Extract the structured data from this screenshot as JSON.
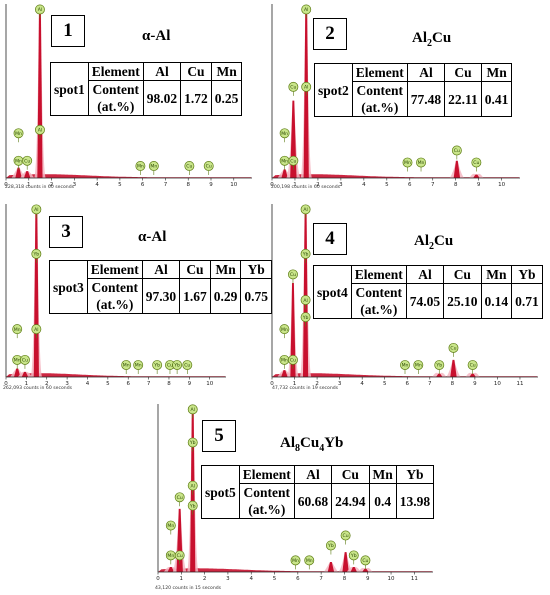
{
  "chart_data": [
    {
      "type": "eds-spectrum",
      "panel_number": "1",
      "title": "α-Al",
      "title_sub": "",
      "caption": "228,318 counts in 60 seconds",
      "x_ticks": [
        "0",
        "1",
        "2",
        "3",
        "4",
        "5",
        "6",
        "7",
        "8",
        "9",
        "10"
      ],
      "xlim": [
        0,
        10.8
      ],
      "ylim": [
        0,
        1
      ],
      "peaks": [
        {
          "element": "Mn",
          "energy": 0.55,
          "height": 0.06
        },
        {
          "element": "Cu",
          "energy": 0.93,
          "height": 0.04
        },
        {
          "element": "Al",
          "energy": 1.49,
          "height": 1.0
        },
        {
          "element": "Mn",
          "energy": 5.9,
          "height": 0.0
        },
        {
          "element": "Mn",
          "energy": 6.49,
          "height": 0.0
        },
        {
          "element": "Cu",
          "energy": 8.05,
          "height": 0.0
        },
        {
          "element": "Cu",
          "energy": 8.9,
          "height": 0.0
        }
      ],
      "marker_labels": [
        {
          "element": "Al",
          "energy": 1.49,
          "level": 0.98
        },
        {
          "element": "Al",
          "energy": 1.49,
          "level": 0.28
        },
        {
          "element": "Mn",
          "energy": 0.55,
          "level": 0.1
        },
        {
          "element": "Mn",
          "energy": 0.55,
          "level": 0.26
        },
        {
          "element": "Cu",
          "energy": 0.93,
          "level": 0.1
        },
        {
          "element": "Mn",
          "energy": 5.9,
          "level": 0.07
        },
        {
          "element": "Mn",
          "energy": 6.49,
          "level": 0.07
        },
        {
          "element": "Cu",
          "energy": 8.05,
          "level": 0.07
        },
        {
          "element": "Cu",
          "energy": 8.9,
          "level": 0.07
        }
      ],
      "table": {
        "headers": [
          "Element",
          "Al",
          "Cu",
          "Mn"
        ],
        "spot": "spot1",
        "row_label": [
          "Content",
          "(at.%)"
        ],
        "values": [
          "98.02",
          "1.72",
          "0.25"
        ]
      }
    },
    {
      "type": "eds-spectrum",
      "panel_number": "2",
      "title": "Al",
      "title_sub": "2",
      "title_tail": "Cu",
      "caption": "200,198 counts in 60 seconds",
      "x_ticks": [
        "0",
        "1",
        "2",
        "3",
        "4",
        "5",
        "6",
        "7",
        "8",
        "9",
        "10"
      ],
      "xlim": [
        0,
        10.8
      ],
      "ylim": [
        0,
        1
      ],
      "peaks": [
        {
          "element": "Mn",
          "energy": 0.55,
          "height": 0.05
        },
        {
          "element": "Cu",
          "energy": 0.93,
          "height": 0.45
        },
        {
          "element": "Al",
          "energy": 1.49,
          "height": 1.0
        },
        {
          "element": "Mn",
          "energy": 5.9,
          "height": 0.0
        },
        {
          "element": "Mn",
          "energy": 6.49,
          "height": 0.0
        },
        {
          "element": "Cu",
          "energy": 8.05,
          "height": 0.1
        },
        {
          "element": "Cu",
          "energy": 8.9,
          "height": 0.02
        }
      ],
      "marker_labels": [
        {
          "element": "Al",
          "energy": 1.49,
          "level": 0.98
        },
        {
          "element": "Al",
          "energy": 1.49,
          "level": 0.53
        },
        {
          "element": "Cu",
          "energy": 0.93,
          "level": 0.53
        },
        {
          "element": "Mn",
          "energy": 0.55,
          "level": 0.1
        },
        {
          "element": "Mn",
          "energy": 0.55,
          "level": 0.26
        },
        {
          "element": "Cu",
          "energy": 0.93,
          "level": 0.1
        },
        {
          "element": "Mn",
          "energy": 5.9,
          "level": 0.09
        },
        {
          "element": "Mn",
          "energy": 6.49,
          "level": 0.09
        },
        {
          "element": "Cu",
          "energy": 8.05,
          "level": 0.16
        },
        {
          "element": "Cu",
          "energy": 8.9,
          "level": 0.09
        }
      ],
      "table": {
        "headers": [
          "Element",
          "Al",
          "Cu",
          "Mn"
        ],
        "spot": "spot2",
        "row_label": [
          "Content",
          "(at.%)"
        ],
        "values": [
          "77.48",
          "22.11",
          "0.41"
        ]
      }
    },
    {
      "type": "eds-spectrum",
      "panel_number": "3",
      "title": "α-Al",
      "title_sub": "",
      "caption": "262,093 counts in 60 seconds",
      "x_ticks": [
        "0",
        "1",
        "2",
        "3",
        "4",
        "5",
        "6",
        "7",
        "8",
        "9",
        "10"
      ],
      "xlim": [
        0,
        10.8
      ],
      "ylim": [
        0,
        1
      ],
      "peaks": [
        {
          "element": "Mn",
          "energy": 0.55,
          "height": 0.05
        },
        {
          "element": "Cu",
          "energy": 0.93,
          "height": 0.03
        },
        {
          "element": "Al",
          "energy": 1.49,
          "height": 1.0
        },
        {
          "element": "Mn",
          "energy": 5.9,
          "height": 0.0
        },
        {
          "element": "Mn",
          "energy": 6.49,
          "height": 0.0
        },
        {
          "element": "Yb",
          "energy": 7.42,
          "height": 0.0
        },
        {
          "element": "Cu",
          "energy": 8.05,
          "height": 0.0
        },
        {
          "element": "Yb",
          "energy": 8.4,
          "height": 0.0
        },
        {
          "element": "Cu",
          "energy": 8.9,
          "height": 0.0
        }
      ],
      "marker_labels": [
        {
          "element": "Al",
          "energy": 1.49,
          "level": 0.98
        },
        {
          "element": "Yb",
          "energy": 1.49,
          "level": 0.72
        },
        {
          "element": "Al",
          "energy": 1.49,
          "level": 0.28
        },
        {
          "element": "Mn",
          "energy": 0.55,
          "level": 0.1
        },
        {
          "element": "Mn",
          "energy": 0.55,
          "level": 0.28
        },
        {
          "element": "Cu",
          "energy": 0.93,
          "level": 0.1
        },
        {
          "element": "Mn",
          "energy": 5.9,
          "level": 0.07
        },
        {
          "element": "Mn",
          "energy": 6.49,
          "level": 0.07
        },
        {
          "element": "Yb",
          "energy": 7.42,
          "level": 0.07
        },
        {
          "element": "Cu",
          "energy": 8.05,
          "level": 0.07
        },
        {
          "element": "Yb",
          "energy": 8.4,
          "level": 0.07
        },
        {
          "element": "Cu",
          "energy": 8.9,
          "level": 0.07
        }
      ],
      "table": {
        "headers": [
          "Element",
          "Al",
          "Cu",
          "Mn",
          "Yb"
        ],
        "spot": "spot3",
        "row_label": [
          "Content",
          "(at.%)"
        ],
        "values": [
          "97.30",
          "1.67",
          "0.29",
          "0.75"
        ]
      }
    },
    {
      "type": "eds-spectrum",
      "panel_number": "4",
      "title": "Al",
      "title_sub": "2",
      "title_tail": "Cu",
      "caption": "47,732 counts in 19 seconds",
      "x_ticks": [
        "0",
        "1",
        "2",
        "3",
        "4",
        "5",
        "6",
        "7",
        "8",
        "9",
        "10",
        "11"
      ],
      "xlim": [
        0,
        11.8
      ],
      "ylim": [
        0,
        1
      ],
      "peaks": [
        {
          "element": "Mn",
          "energy": 0.55,
          "height": 0.04
        },
        {
          "element": "Cu",
          "energy": 0.93,
          "height": 0.55
        },
        {
          "element": "Al",
          "energy": 1.49,
          "height": 1.0
        },
        {
          "element": "Mn",
          "energy": 5.9,
          "height": 0.0
        },
        {
          "element": "Mn",
          "energy": 6.49,
          "height": 0.0
        },
        {
          "element": "Yb",
          "energy": 7.42,
          "height": 0.02
        },
        {
          "element": "Cu",
          "energy": 8.05,
          "height": 0.1
        },
        {
          "element": "Cu",
          "energy": 8.9,
          "height": 0.02
        }
      ],
      "marker_labels": [
        {
          "element": "Al",
          "energy": 1.49,
          "level": 0.98
        },
        {
          "element": "Yb",
          "energy": 1.49,
          "level": 0.72
        },
        {
          "element": "Cu",
          "energy": 0.93,
          "level": 0.6
        },
        {
          "element": "Yb",
          "energy": 1.49,
          "level": 0.35
        },
        {
          "element": "Al",
          "energy": 1.49,
          "level": 0.45
        },
        {
          "element": "Mn",
          "energy": 0.55,
          "level": 0.1
        },
        {
          "element": "Mn",
          "energy": 0.55,
          "level": 0.28
        },
        {
          "element": "Cu",
          "energy": 0.93,
          "level": 0.1
        },
        {
          "element": "Mn",
          "energy": 5.9,
          "level": 0.07
        },
        {
          "element": "Mn",
          "energy": 6.49,
          "level": 0.07
        },
        {
          "element": "Yb",
          "energy": 7.42,
          "level": 0.07
        },
        {
          "element": "Cu",
          "energy": 8.05,
          "level": 0.17
        },
        {
          "element": "Cu",
          "energy": 8.9,
          "level": 0.07
        }
      ],
      "table": {
        "headers": [
          "Element",
          "Al",
          "Cu",
          "Mn",
          "Yb"
        ],
        "spot": "spot4",
        "row_label": [
          "Content",
          "(at.%)"
        ],
        "values": [
          "74.05",
          "25.10",
          "0.14",
          "0.71"
        ]
      }
    },
    {
      "type": "eds-spectrum",
      "panel_number": "5",
      "title": "Al",
      "title_sub": "8",
      "title_mid": "Cu",
      "title_sub2": "4",
      "title_tail": "Yb",
      "caption": "43,120 counts in 15 seconds",
      "x_ticks": [
        "0",
        "1",
        "2",
        "3",
        "4",
        "5",
        "6",
        "7",
        "8",
        "9",
        "10",
        "11"
      ],
      "xlim": [
        0,
        11.8
      ],
      "ylim": [
        0,
        1
      ],
      "peaks": [
        {
          "element": "Mn",
          "energy": 0.55,
          "height": 0.03
        },
        {
          "element": "Cu",
          "energy": 0.93,
          "height": 0.38
        },
        {
          "element": "Al",
          "energy": 1.49,
          "height": 1.0
        },
        {
          "element": "Mn",
          "energy": 5.9,
          "height": 0.0
        },
        {
          "element": "Mn",
          "energy": 6.49,
          "height": 0.0
        },
        {
          "element": "Yb",
          "energy": 7.42,
          "height": 0.06
        },
        {
          "element": "Cu",
          "energy": 8.05,
          "height": 0.12
        },
        {
          "element": "Yb",
          "energy": 8.4,
          "height": 0.03
        },
        {
          "element": "Cu",
          "energy": 8.9,
          "height": 0.02
        }
      ],
      "marker_labels": [
        {
          "element": "Al",
          "energy": 1.49,
          "level": 0.98
        },
        {
          "element": "Yb",
          "energy": 1.49,
          "level": 0.78
        },
        {
          "element": "Cu",
          "energy": 0.93,
          "level": 0.45
        },
        {
          "element": "Yb",
          "energy": 1.49,
          "level": 0.4
        },
        {
          "element": "Al",
          "energy": 1.49,
          "level": 0.52
        },
        {
          "element": "Mn",
          "energy": 0.55,
          "level": 0.1
        },
        {
          "element": "Mn",
          "energy": 0.55,
          "level": 0.28
        },
        {
          "element": "Cu",
          "energy": 0.93,
          "level": 0.1
        },
        {
          "element": "Mn",
          "energy": 5.9,
          "level": 0.07
        },
        {
          "element": "Mn",
          "energy": 6.49,
          "level": 0.07
        },
        {
          "element": "Yb",
          "energy": 7.42,
          "level": 0.16
        },
        {
          "element": "Cu",
          "energy": 8.05,
          "level": 0.22
        },
        {
          "element": "Yb",
          "energy": 8.4,
          "level": 0.1
        },
        {
          "element": "Cu",
          "energy": 8.9,
          "level": 0.07
        }
      ],
      "table": {
        "headers": [
          "Element",
          "Al",
          "Cu",
          "Mn",
          "Yb"
        ],
        "spot": "spot5",
        "row_label": [
          "Content",
          "(at.%)"
        ],
        "values": [
          "60.68",
          "24.94",
          "0.4",
          "13.98"
        ]
      }
    }
  ],
  "colors": {
    "spectrum_fill": "#c8102e",
    "spectrum_halo": "#f4b6c2",
    "marker_fill": "#c9e58a",
    "marker_stroke": "#5d7c14",
    "marker_text": "#2d4a05"
  }
}
